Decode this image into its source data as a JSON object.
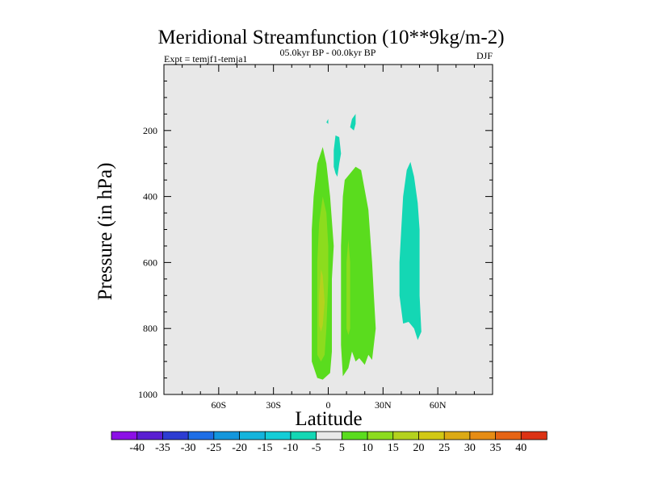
{
  "chart_data": {
    "type": "contour",
    "title": "Meridional Streamfunction (10**9kg/m-2)",
    "left_label": "Expt = temjf1-temja1",
    "center_label": "05.0kyr BP - 00.0kyr BP",
    "right_label": "DJF",
    "xlabel": "Latitude",
    "ylabel": "Pressure (in hPa)",
    "xlim": [
      -90,
      90
    ],
    "ylim": [
      0,
      1000
    ],
    "y_inverted": true,
    "xticks": [
      {
        "value": -60,
        "label": "60S"
      },
      {
        "value": -30,
        "label": "30S"
      },
      {
        "value": 0,
        "label": "0"
      },
      {
        "value": 30,
        "label": "30N"
      },
      {
        "value": 60,
        "label": "60N"
      }
    ],
    "yticks": [
      {
        "value": 200,
        "label": "200"
      },
      {
        "value": 400,
        "label": "400"
      },
      {
        "value": 600,
        "label": "600"
      },
      {
        "value": 800,
        "label": "800"
      },
      {
        "value": 1000,
        "label": "1000"
      }
    ],
    "background_color": "#e8e8e8",
    "colorbar": {
      "levels": [
        -40,
        -35,
        -30,
        -25,
        -20,
        -15,
        -10,
        -5,
        5,
        10,
        15,
        20,
        25,
        30,
        35,
        40
      ],
      "colors": [
        "#8c10e6",
        "#5a1ed2",
        "#2d3cd2",
        "#1e6ee6",
        "#1496dc",
        "#14b4dc",
        "#14cdd7",
        "#14d7b4",
        "#e8e8e8",
        "#5adc1e",
        "#8cdc1e",
        "#b4d21e",
        "#d2c814",
        "#dcaa14",
        "#e68c14",
        "#e66414",
        "#dc3214"
      ]
    },
    "regions": [
      {
        "name": "negative cell near 45N",
        "range": "-10 to -5",
        "color": "#14d7b4",
        "points": [
          [
            41,
            785
          ],
          [
            39,
            700
          ],
          [
            39,
            600
          ],
          [
            40,
            500
          ],
          [
            41,
            400
          ],
          [
            43,
            320
          ],
          [
            45,
            295
          ],
          [
            47,
            340
          ],
          [
            49,
            420
          ],
          [
            50,
            500
          ],
          [
            50,
            600
          ],
          [
            50,
            700
          ],
          [
            51,
            810
          ],
          [
            49,
            835
          ],
          [
            47,
            800
          ],
          [
            44,
            780
          ]
        ]
      },
      {
        "name": "upper negative cell",
        "range": "-10 to -5",
        "color": "#14d7b4",
        "points": [
          [
            3,
            310
          ],
          [
            3,
            260
          ],
          [
            4,
            215
          ],
          [
            6,
            220
          ],
          [
            7,
            270
          ],
          [
            6,
            300
          ],
          [
            5,
            340
          ],
          [
            4,
            330
          ]
        ]
      },
      {
        "name": "upper negative blob",
        "range": "-10 to -5",
        "color": "#14d7b4",
        "points": [
          [
            12,
            190
          ],
          [
            13,
            165
          ],
          [
            15,
            150
          ],
          [
            15,
            180
          ],
          [
            14,
            200
          ]
        ]
      },
      {
        "name": "upper negative speck",
        "range": "-10 to -5",
        "color": "#14d7b4",
        "points": [
          [
            -1,
            175
          ],
          [
            0,
            165
          ],
          [
            0,
            180
          ]
        ]
      },
      {
        "name": "equatorial positive cell",
        "range": "5 to 10",
        "color": "#5adc1e",
        "points": [
          [
            -9,
            900
          ],
          [
            -9,
            800
          ],
          [
            -9,
            700
          ],
          [
            -9,
            600
          ],
          [
            -9,
            500
          ],
          [
            -8,
            400
          ],
          [
            -6,
            300
          ],
          [
            -3,
            250
          ],
          [
            -1,
            300
          ],
          [
            1,
            400
          ],
          [
            3,
            550
          ],
          [
            2,
            650
          ],
          [
            2,
            750
          ],
          [
            2,
            870
          ],
          [
            1,
            935
          ],
          [
            -3,
            955
          ],
          [
            -6,
            950
          ]
        ]
      },
      {
        "name": "northern positive cell",
        "range": "5 to 10",
        "color": "#5adc1e",
        "points": [
          [
            8,
            945
          ],
          [
            7,
            850
          ],
          [
            7,
            700
          ],
          [
            7,
            550
          ],
          [
            8,
            400
          ],
          [
            9,
            350
          ],
          [
            12,
            330
          ],
          [
            15,
            310
          ],
          [
            18,
            320
          ],
          [
            22,
            440
          ],
          [
            24,
            600
          ],
          [
            25,
            700
          ],
          [
            26,
            800
          ],
          [
            24,
            895
          ],
          [
            22,
            880
          ],
          [
            20,
            910
          ],
          [
            17,
            890
          ],
          [
            15,
            900
          ],
          [
            13,
            870
          ],
          [
            11,
            920
          ]
        ]
      },
      {
        "name": "equatorial core",
        "range": "10 to 15",
        "color": "#8cdc1e",
        "points": [
          [
            -6,
            880
          ],
          [
            -6,
            750
          ],
          [
            -6,
            600
          ],
          [
            -5,
            480
          ],
          [
            -3,
            400
          ],
          [
            -1,
            450
          ],
          [
            0,
            550
          ],
          [
            0,
            650
          ],
          [
            -1,
            800
          ],
          [
            -2,
            880
          ],
          [
            -4,
            900
          ]
        ]
      },
      {
        "name": "northern core",
        "range": "10 to 15",
        "color": "#8cdc1e",
        "points": [
          [
            10,
            800
          ],
          [
            10,
            700
          ],
          [
            10,
            600
          ],
          [
            11,
            530
          ],
          [
            12,
            600
          ],
          [
            12,
            700
          ],
          [
            12,
            800
          ],
          [
            11,
            820
          ]
        ]
      },
      {
        "name": "equatorial maximum",
        "range": "15 to 20",
        "color": "#b4d21e",
        "points": [
          [
            -5,
            790
          ],
          [
            -5,
            700
          ],
          [
            -4,
            620
          ],
          [
            -3,
            640
          ],
          [
            -2,
            720
          ],
          [
            -3,
            790
          ],
          [
            -4,
            810
          ]
        ]
      }
    ]
  }
}
